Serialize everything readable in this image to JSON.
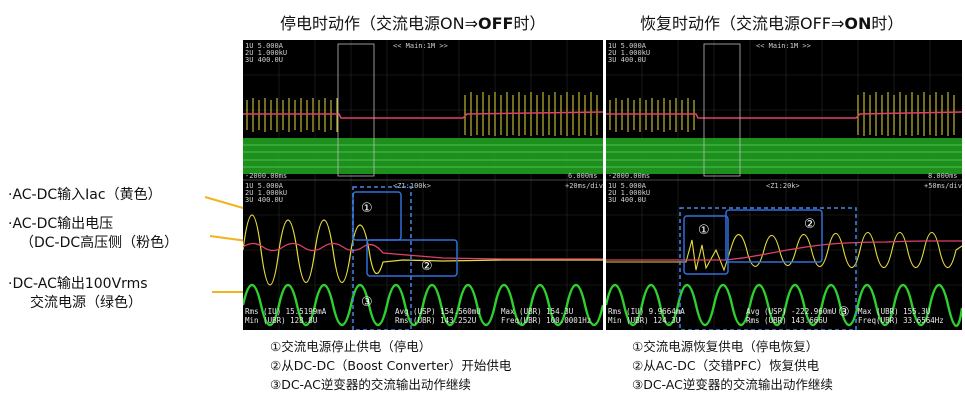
{
  "headings": {
    "left": {
      "prefix": "停电时动作（交流电源ON⇒",
      "bold": "OFF",
      "suffix": "时）"
    },
    "right": {
      "prefix": "恢复时动作（交流电源OFF⇒",
      "bold": "ON",
      "suffix": "时）"
    }
  },
  "side_labels": {
    "iac": "·AC-DC输入Iac（黄色）",
    "vout_line1": "·AC-DC输出电压",
    "vout_line2": "（DC-DC高压侧（粉色）",
    "acout_line1": "·DC-AC输出100Vrms",
    "acout_line2": "交流电源（绿色）"
  },
  "left_scope": {
    "header": [
      "1U",
      "5.00OA",
      "2U",
      "1.00kU",
      "3U",
      "400.0U"
    ],
    "top_title": "<< Main:1M >>",
    "left_time": "-2000.00ms",
    "right_time": "6.000ms",
    "zoom_title": "<Z1:100k>",
    "zoom_rate": "+20ms/div",
    "zoom_header": [
      "1U",
      "5.00OA",
      "2U",
      "1.00kU",
      "3U",
      "400.0U"
    ],
    "meas_row1": [
      "Rms (IU)",
      "15.5199mA",
      "Avg (USP)",
      "154.560mU",
      "Max (UBR)",
      "154.3U"
    ],
    "meas_row2": [
      "Min (UBR)",
      "128.8U",
      "Rms (UBR)",
      "143.252U",
      "Freq(UBR)",
      "100.0001Hz"
    ],
    "markers": [
      "①",
      "②",
      "③"
    ]
  },
  "right_scope": {
    "header": [
      "1U",
      "5.00OA",
      "2U",
      "1.00kU",
      "3U",
      "400.0U"
    ],
    "top_title": "<< Main:1M >>",
    "left_time": "-2000.00ms",
    "right_time": "8.000ms",
    "zoom_title": "<Z1:20k>",
    "zoom_rate": "+50ms/div",
    "zoom_header": [
      "1U",
      "5.00OA",
      "2U",
      "1.00kU",
      "3U",
      "400.0U"
    ],
    "meas_row1": [
      "Rms (IU)",
      "9.9664mA",
      "Avg (USP)",
      "-222.960mU",
      "Max (UBR)",
      "155.3U"
    ],
    "meas_row2": [
      "Min (UBR)",
      "124.3U",
      "Rms (UBR)",
      "143.666U",
      "Freq(UBR)",
      "33.6564Hz"
    ],
    "markers": [
      "①",
      "②",
      "③"
    ]
  },
  "notes_left": [
    "①交流电源停止供电（停电）",
    "②从DC-DC（Boost Converter）开始供电",
    "③DC-AC逆变器的交流输出动作继续"
  ],
  "notes_right": [
    "①交流电源恢复供电（停电恢复）",
    "②从AC-DC（交错PFC）恢复供电",
    "③DC-AC逆变器的交流输出动作继续"
  ],
  "colors": {
    "iac": "#e6dc3c",
    "vout": "#e0406a",
    "acout": "#2ed02e",
    "arrow": "#f2b31c",
    "box": "#2f6fd8",
    "dashed": "#4a86e8"
  }
}
